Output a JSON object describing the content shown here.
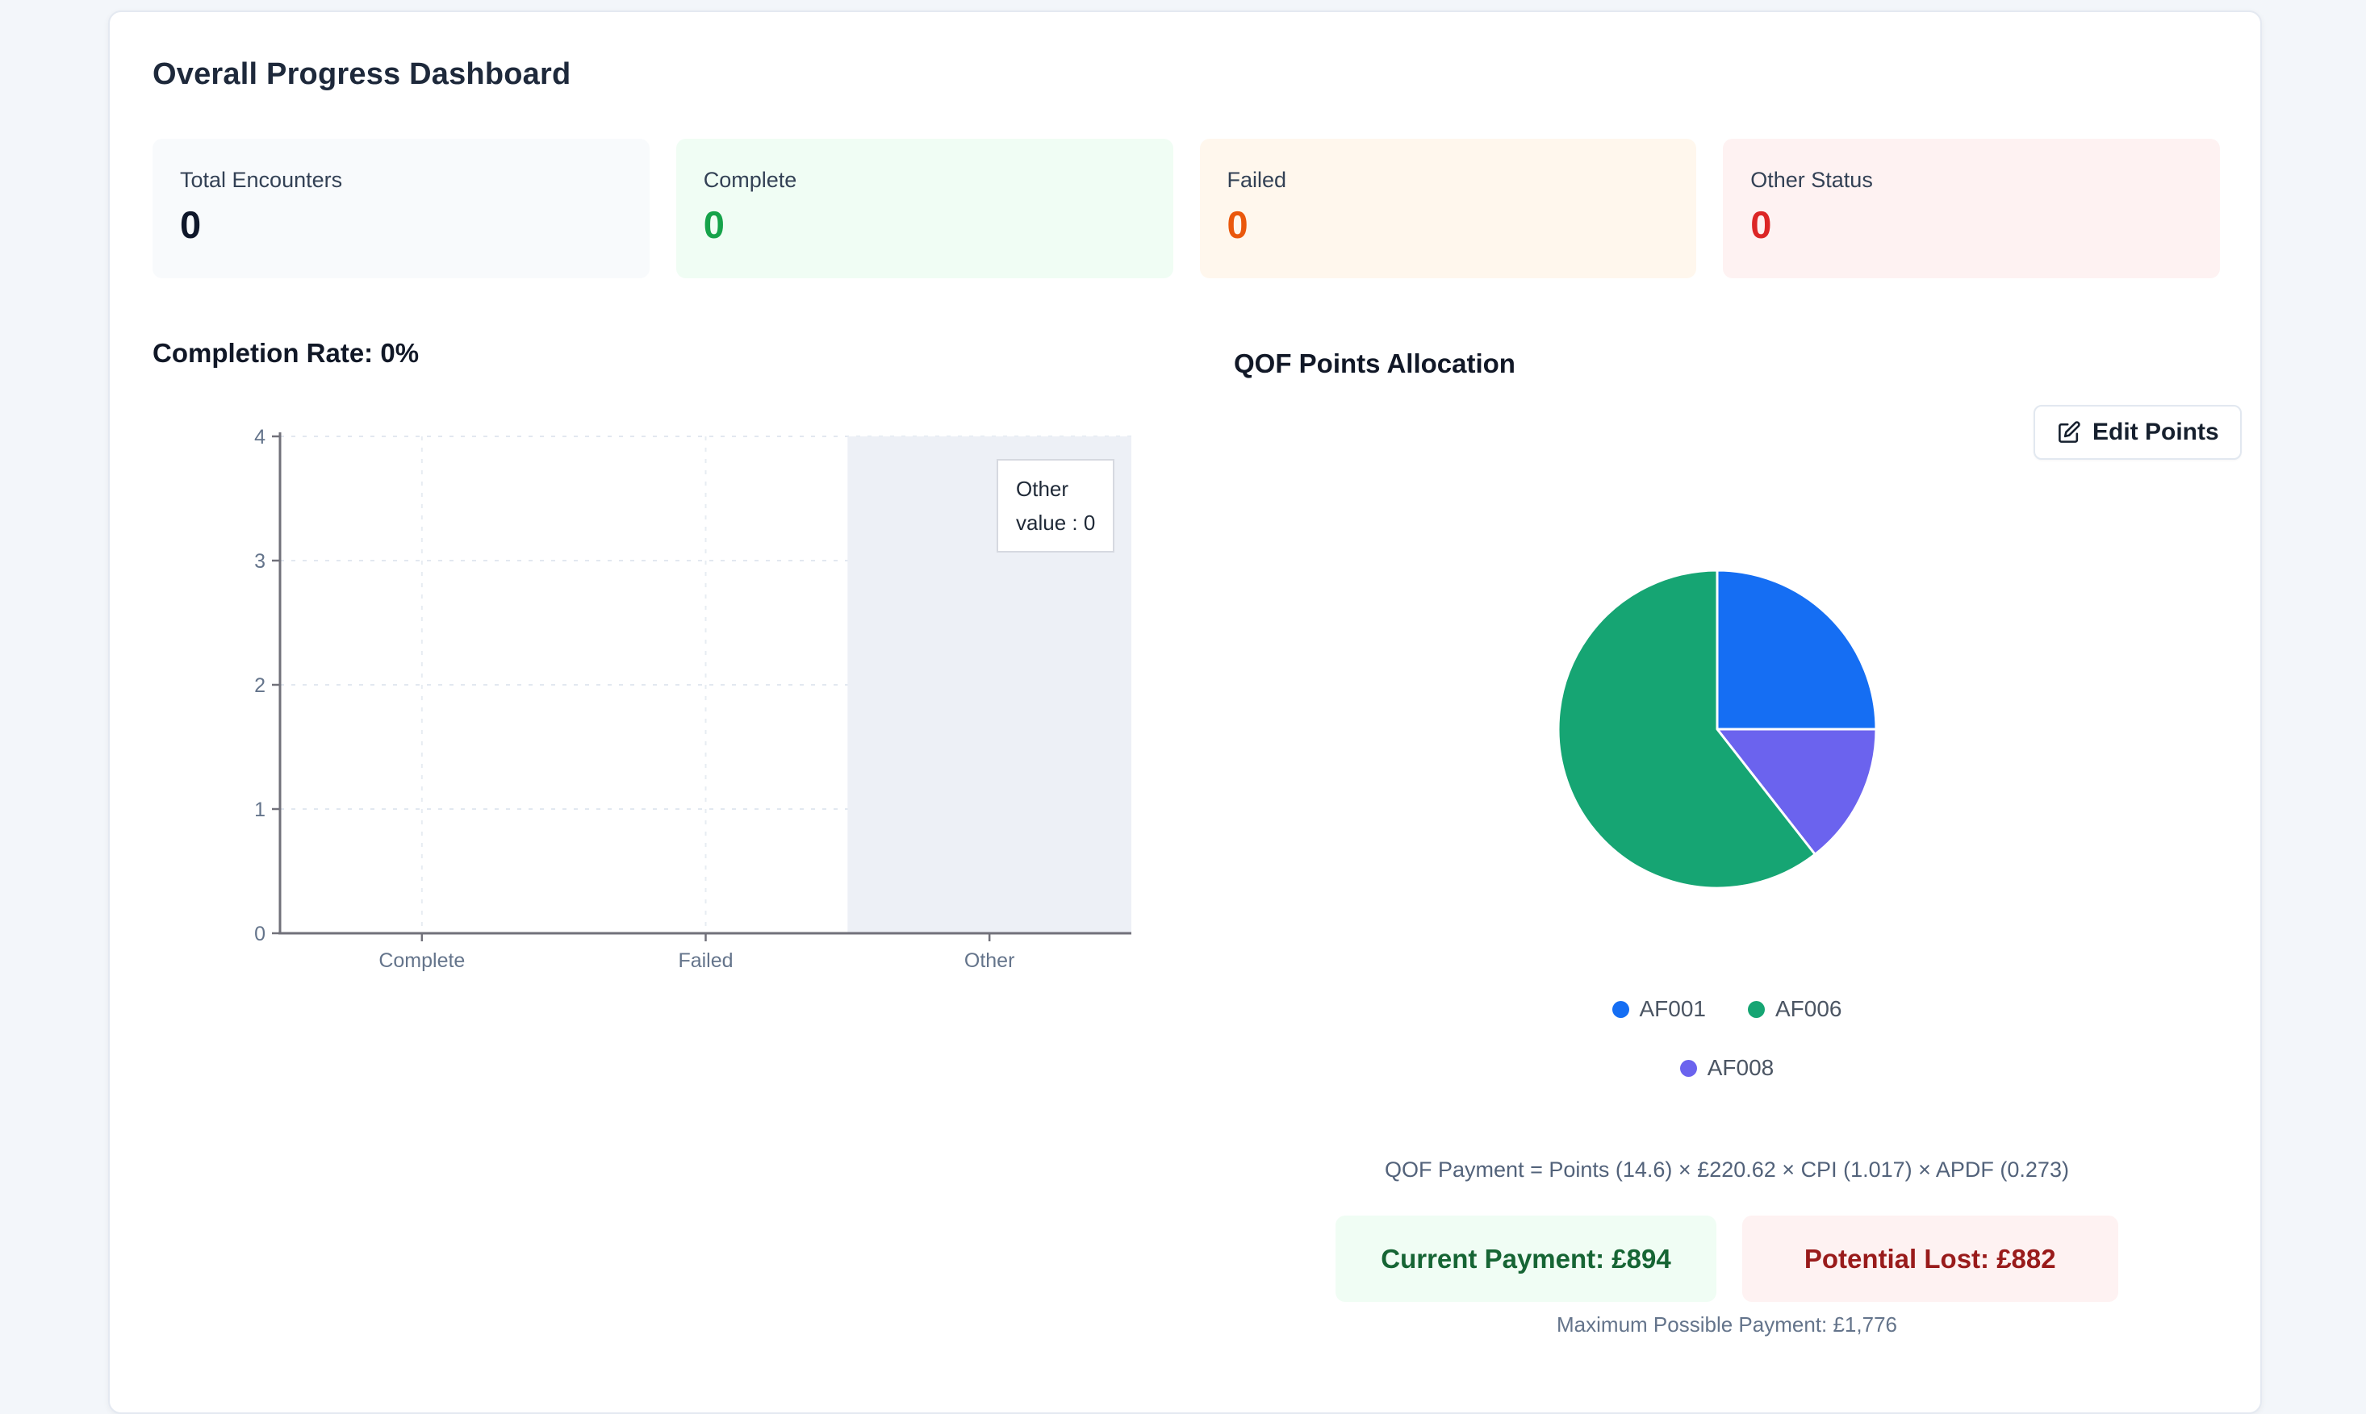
{
  "header": {
    "title": "Overall Progress Dashboard"
  },
  "stats": {
    "cards": [
      {
        "label": "Total Encounters",
        "value": "0",
        "bg": "#f8fafc",
        "value_color": "#0f172a"
      },
      {
        "label": "Complete",
        "value": "0",
        "bg": "#f0fdf4",
        "value_color": "#16a34a"
      },
      {
        "label": "Failed",
        "value": "0",
        "bg": "#fff7ed",
        "value_color": "#ea580c"
      },
      {
        "label": "Other Status",
        "value": "0",
        "bg": "#fef2f2",
        "value_color": "#dc2626"
      }
    ]
  },
  "completion_section": {
    "heading": "Completion Rate: 0%"
  },
  "qof_section": {
    "heading": "QOF Points Allocation",
    "edit_button_label": "Edit Points",
    "formula": "QOF Payment = Points (14.6) × £220.62 × CPI (1.017) × APDF (0.273)",
    "current_payment": "Current Payment: £894",
    "potential_lost": "Potential Lost: £882",
    "max_payment": "Maximum Possible Payment: £1,776",
    "colors": {
      "current_bg": "#f0fdf4",
      "current_text": "#166534",
      "lost_bg": "#fef2f2",
      "lost_text": "#991b1b"
    }
  },
  "chart_data": [
    {
      "type": "bar",
      "title": "Completion Rate: 0%",
      "categories": [
        "Complete",
        "Failed",
        "Other"
      ],
      "values": [
        0,
        0,
        0
      ],
      "xlabel": "",
      "ylabel": "",
      "ylim": [
        0,
        4
      ],
      "yticks": [
        0,
        1,
        2,
        3,
        4
      ],
      "grid": true,
      "legend_shown": false,
      "highlighted_category": "Other",
      "tooltip": {
        "title": "Other",
        "value_line": "value : 0"
      },
      "colors": {
        "axis": "#71717a",
        "tick_label": "#64748b",
        "grid_line": "#e2e8f0",
        "highlight_band": "#edf0f6"
      }
    },
    {
      "type": "pie",
      "title": "QOF Points Allocation",
      "slices": [
        {
          "name": "AF001",
          "percent": 25.0,
          "color": "#156ef3",
          "start_deg": 0,
          "end_deg": 90
        },
        {
          "name": "AF008",
          "percent": 14.4,
          "color": "#6b63ee",
          "start_deg": 90,
          "end_deg": 142
        },
        {
          "name": "AF006",
          "percent": 60.6,
          "color": "#16a573",
          "start_deg": 142,
          "end_deg": 360
        }
      ],
      "legend": {
        "position": "bottom",
        "order": [
          "AF001",
          "AF006",
          "AF008"
        ],
        "label_color": "#4b5563"
      }
    }
  ]
}
